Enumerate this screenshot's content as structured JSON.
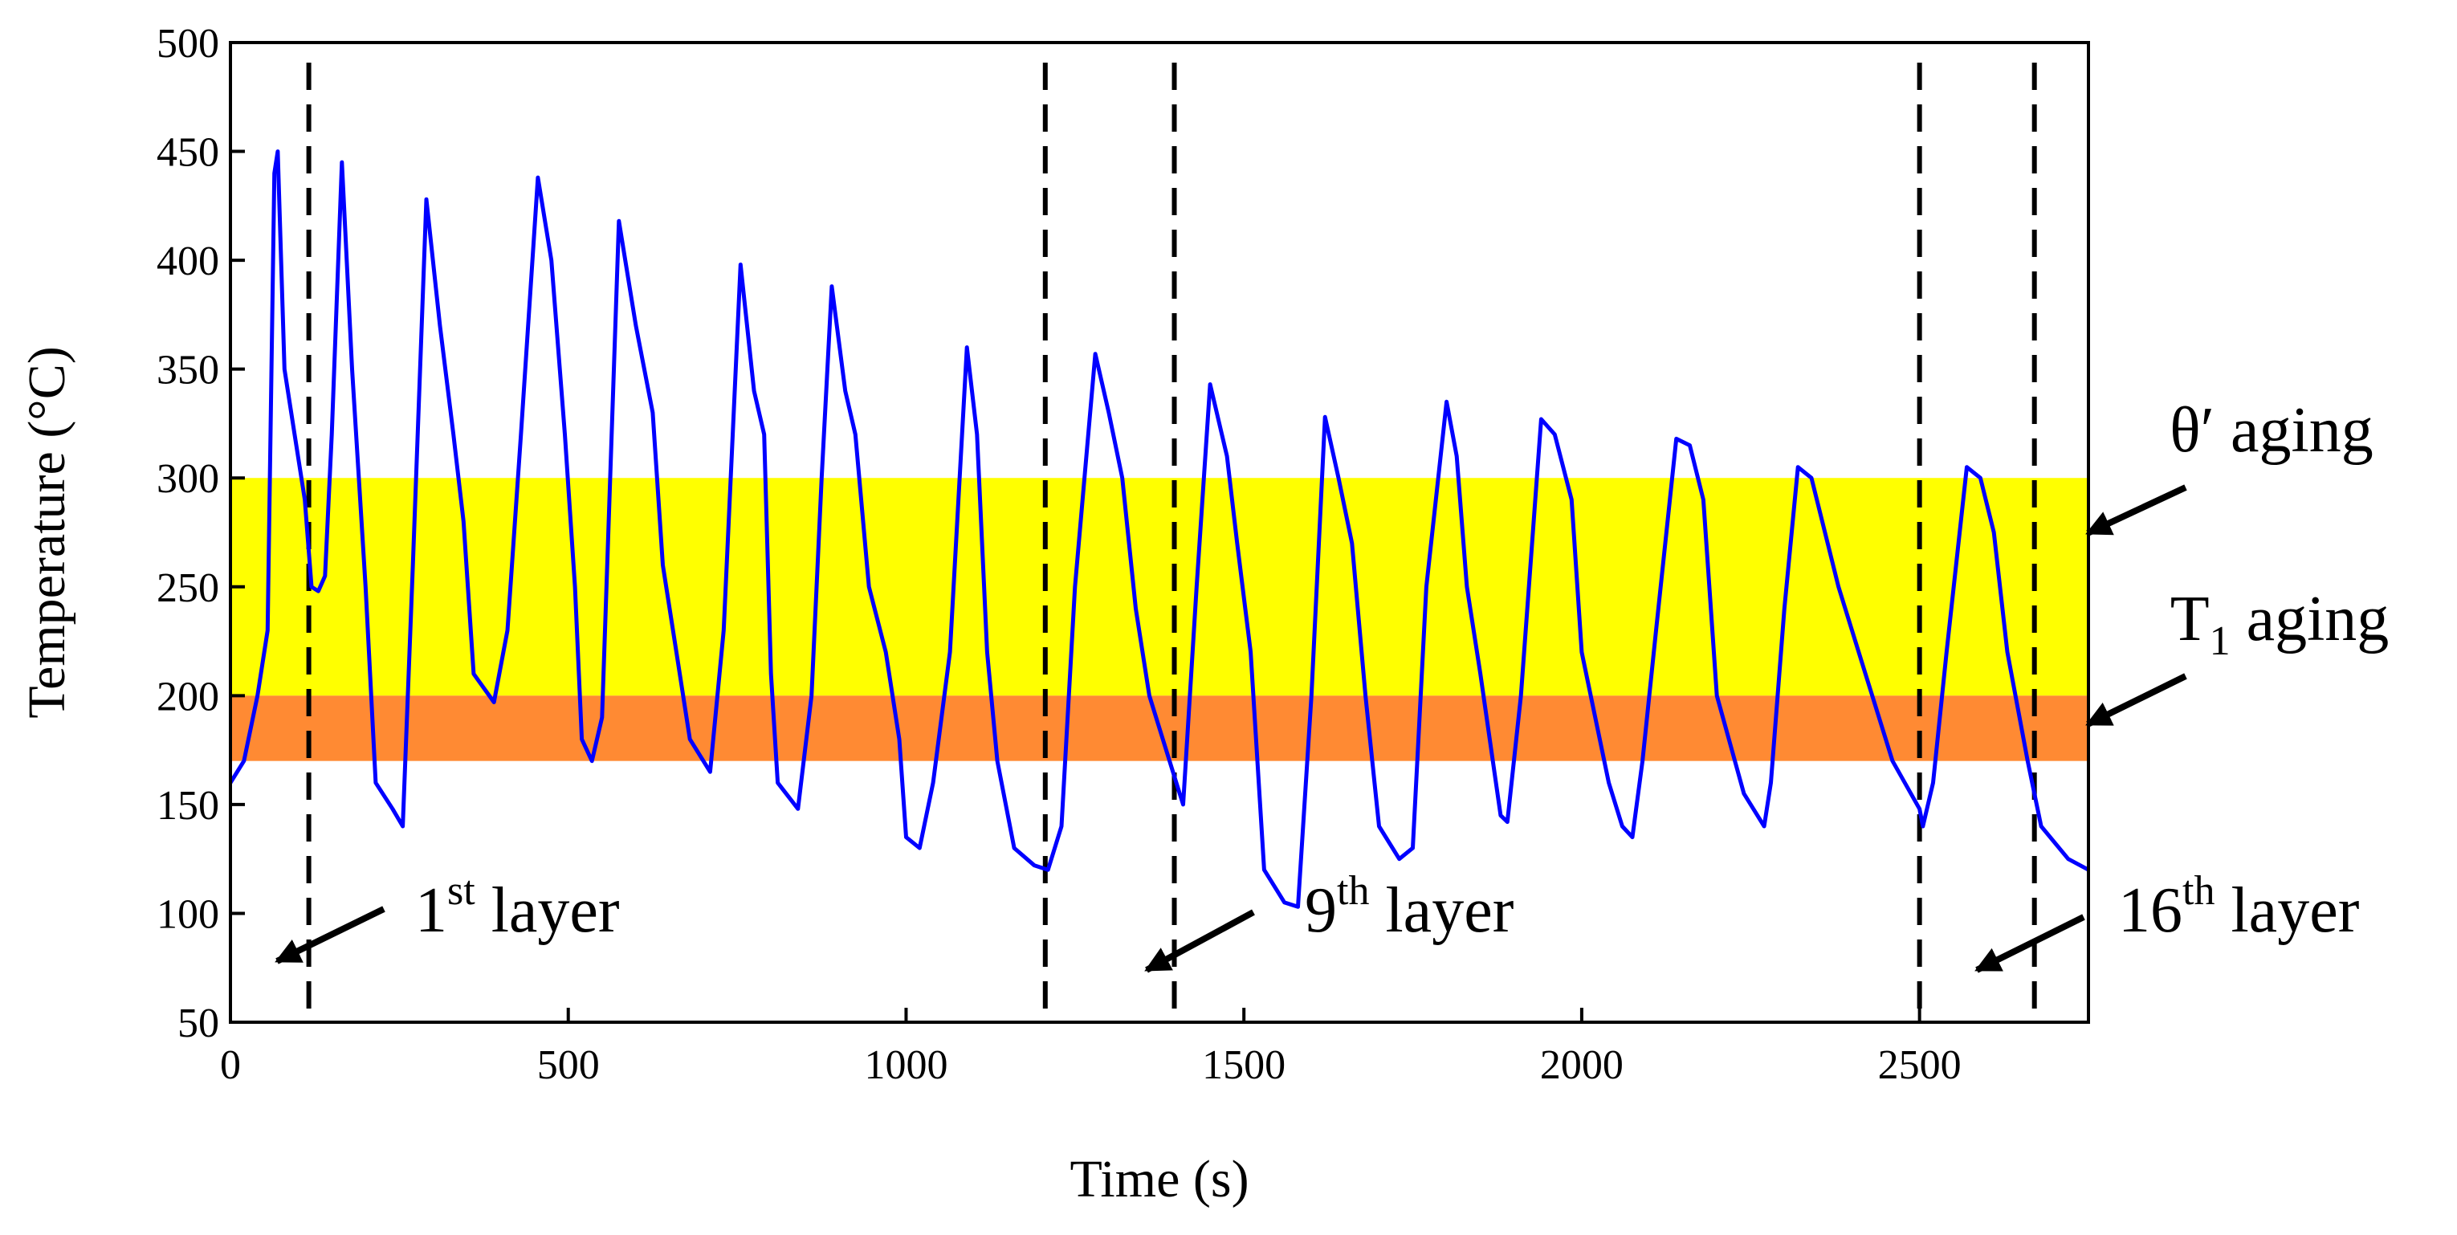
{
  "chart_data": {
    "type": "line",
    "xlabel": "Time (s)",
    "ylabel": "Temperature (°C)",
    "xlim": [
      0,
      2750
    ],
    "ylim": [
      50,
      500
    ],
    "xticks": [
      0,
      500,
      1000,
      1500,
      2000,
      2500
    ],
    "yticks": [
      50,
      100,
      150,
      200,
      250,
      300,
      350,
      400,
      450,
      500
    ],
    "bands": [
      {
        "from": 200,
        "to": 300,
        "color": "#ffff00"
      },
      {
        "from": 170,
        "to": 200,
        "color": "#ff8a33"
      }
    ],
    "vlines": [
      116,
      1206,
      1397,
      2500,
      2670
    ],
    "x": [
      0,
      20,
      40,
      55,
      65,
      70,
      80,
      95,
      110,
      120,
      130,
      140,
      150,
      165,
      180,
      200,
      215,
      240,
      255,
      270,
      290,
      310,
      330,
      345,
      360,
      390,
      410,
      430,
      455,
      475,
      495,
      510,
      520,
      535,
      550,
      575,
      600,
      625,
      640,
      660,
      680,
      710,
      730,
      755,
      775,
      790,
      800,
      810,
      840,
      860,
      875,
      890,
      910,
      925,
      945,
      970,
      990,
      1000,
      1020,
      1040,
      1065,
      1090,
      1105,
      1120,
      1135,
      1160,
      1190,
      1210,
      1230,
      1250,
      1280,
      1300,
      1320,
      1340,
      1360,
      1400,
      1410,
      1430,
      1450,
      1475,
      1490,
      1510,
      1530,
      1560,
      1580,
      1600,
      1620,
      1640,
      1660,
      1680,
      1700,
      1730,
      1750,
      1770,
      1800,
      1815,
      1830,
      1850,
      1880,
      1890,
      1910,
      1940,
      1960,
      1985,
      2000,
      2040,
      2060,
      2075,
      2090,
      2110,
      2140,
      2160,
      2180,
      2200,
      2240,
      2270,
      2280,
      2300,
      2320,
      2340,
      2380,
      2420,
      2460,
      2500,
      2505,
      2520,
      2540,
      2570,
      2590,
      2610,
      2630,
      2660,
      2680,
      2720,
      2750
    ],
    "series": [
      {
        "color": "#0000ff",
        "values": [
          160,
          170,
          200,
          230,
          440,
          450,
          350,
          320,
          290,
          250,
          248,
          255,
          320,
          445,
          350,
          250,
          160,
          148,
          140,
          260,
          428,
          370,
          320,
          280,
          210,
          197,
          230,
          320,
          438,
          400,
          320,
          250,
          180,
          170,
          190,
          418,
          370,
          330,
          260,
          220,
          180,
          165,
          230,
          398,
          340,
          320,
          210,
          160,
          148,
          200,
          300,
          388,
          340,
          320,
          250,
          220,
          180,
          135,
          130,
          160,
          220,
          360,
          320,
          220,
          170,
          130,
          122,
          120,
          140,
          250,
          357,
          330,
          300,
          240,
          200,
          160,
          150,
          250,
          343,
          310,
          270,
          220,
          120,
          105,
          103,
          200,
          328,
          300,
          270,
          200,
          140,
          125,
          130,
          250,
          335,
          310,
          250,
          210,
          145,
          142,
          200,
          327,
          320,
          290,
          220,
          160,
          140,
          135,
          170,
          230,
          318,
          315,
          290,
          200,
          155,
          140,
          160,
          240,
          305,
          300,
          250,
          210,
          170,
          148,
          140,
          160,
          220,
          305,
          300,
          275,
          220,
          170,
          140,
          125,
          120
        ]
      }
    ],
    "annotations": [
      {
        "text": "θ′ aging"
      },
      {
        "pre": "T",
        "sub": "1",
        "post": " aging"
      },
      {
        "pre": "1",
        "sup": "st",
        "post": " layer"
      },
      {
        "pre": "9",
        "sup": "th",
        "post": " layer"
      },
      {
        "pre": "16",
        "sup": "th",
        "post": " layer"
      }
    ]
  }
}
